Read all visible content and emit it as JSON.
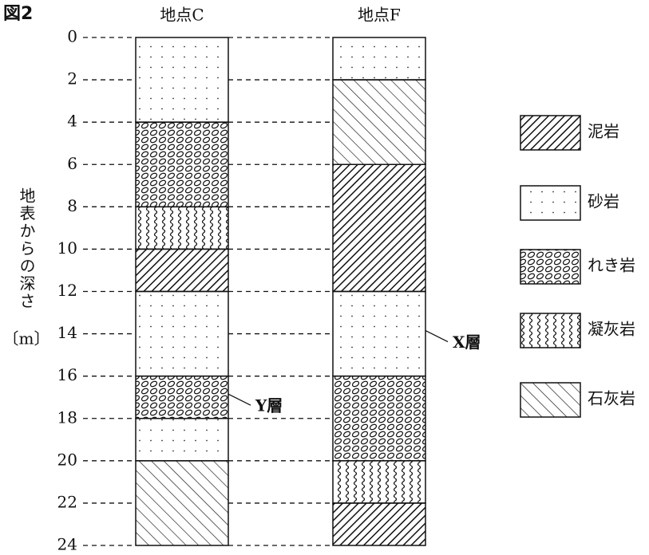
{
  "figure_label": "図2",
  "axis_label": "地表からの深さ",
  "axis_unit": "〔m〕",
  "depth_range": [
    0,
    24
  ],
  "depth_ticks": [
    0,
    2,
    4,
    6,
    8,
    10,
    12,
    14,
    16,
    18,
    20,
    22,
    24
  ],
  "legend": [
    "泥岩",
    "砂岩",
    "れき岩",
    "凝灰岩",
    "石灰岩"
  ],
  "columns": [
    {
      "title": "地点C",
      "layers": [
        {
          "top": 0,
          "bottom": 4,
          "rock": 1
        },
        {
          "top": 4,
          "bottom": 8,
          "rock": 2
        },
        {
          "top": 8,
          "bottom": 10,
          "rock": 3
        },
        {
          "top": 10,
          "bottom": 12,
          "rock": 0
        },
        {
          "top": 12,
          "bottom": 16,
          "rock": 1
        },
        {
          "top": 16,
          "bottom": 18,
          "rock": 2
        },
        {
          "top": 18,
          "bottom": 20,
          "rock": 1
        },
        {
          "top": 20,
          "bottom": 24,
          "rock": 4
        }
      ]
    },
    {
      "title": "地点F",
      "layers": [
        {
          "top": 0,
          "bottom": 2,
          "rock": 1
        },
        {
          "top": 2,
          "bottom": 6,
          "rock": 4
        },
        {
          "top": 6,
          "bottom": 12,
          "rock": 0
        },
        {
          "top": 12,
          "bottom": 16,
          "rock": 1
        },
        {
          "top": 16,
          "bottom": 20,
          "rock": 2
        },
        {
          "top": 20,
          "bottom": 22,
          "rock": 3
        },
        {
          "top": 22,
          "bottom": 24,
          "rock": 0
        }
      ]
    }
  ],
  "annotations": [
    {
      "text": "Y層",
      "column": 0,
      "depth": 17
    },
    {
      "text": "X層",
      "column": 1,
      "depth": 14
    }
  ]
}
